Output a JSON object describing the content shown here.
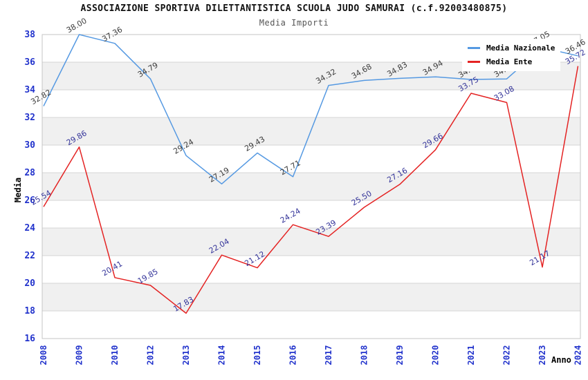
{
  "chart_data": {
    "type": "line",
    "title": "ASSOCIAZIONE SPORTIVA DILETTANTISTICA SCUOLA JUDO SAMURAI (c.f.92003480875)",
    "subtitle": "Media Importi",
    "xlabel": "Anno",
    "ylabel": "Media",
    "ylim": [
      16,
      38
    ],
    "ytick_step": 2,
    "grid": true,
    "legend_position": "top-right",
    "band_colors": [
      "#ffffff",
      "#f0f0f0"
    ],
    "grid_color": "#d4d4d4",
    "frame_color": "#c4c4c4",
    "axis_tick_color": "#2233cc",
    "categories": [
      "2008",
      "2009",
      "2010",
      "2012",
      "2013",
      "2014",
      "2015",
      "2016",
      "2017",
      "2018",
      "2019",
      "2020",
      "2021",
      "2022",
      "2023",
      "2024"
    ],
    "series": [
      {
        "name": "Media Nazionale",
        "color": "#5599e2",
        "label_color": "#3c3c3c",
        "values": [
          32.82,
          38.0,
          37.36,
          34.79,
          29.24,
          27.19,
          29.43,
          27.71,
          34.32,
          34.68,
          34.83,
          34.94,
          34.75,
          34.79,
          37.05,
          36.46
        ]
      },
      {
        "name": "Media Ente",
        "color": "#e42222",
        "label_color": "#333399",
        "values": [
          25.54,
          29.86,
          20.41,
          19.85,
          17.83,
          22.04,
          21.12,
          24.24,
          23.39,
          25.5,
          27.16,
          29.66,
          33.75,
          33.08,
          21.17,
          35.72
        ]
      }
    ]
  }
}
